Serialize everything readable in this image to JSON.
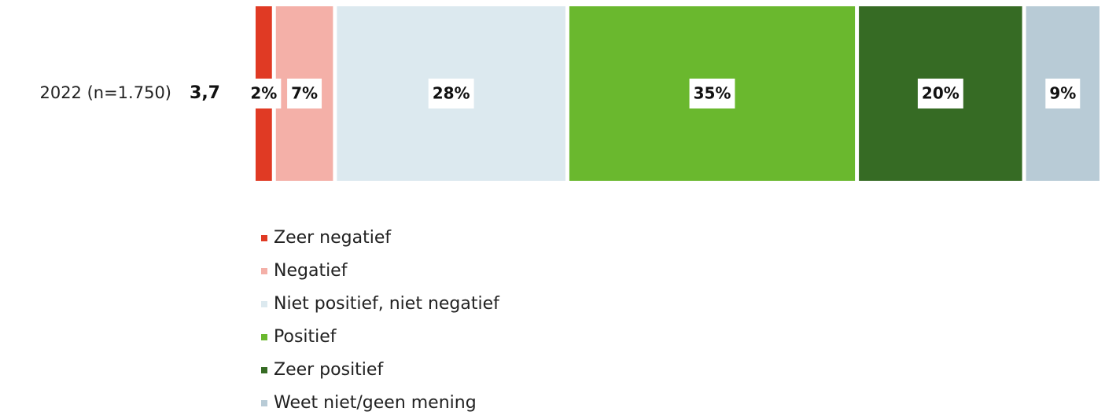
{
  "chart_data": {
    "type": "stacked_bar_horizontal",
    "categories": [
      "2022 (n=1.750)"
    ],
    "score_labels": [
      "3,7"
    ],
    "series": [
      {
        "name": "Zeer negatief",
        "color": "#e03a24",
        "values": [
          2
        ],
        "value_labels": [
          "2%"
        ]
      },
      {
        "name": "Negatief",
        "color": "#f4b0a8",
        "values": [
          7
        ],
        "value_labels": [
          "7%"
        ]
      },
      {
        "name": "Niet positief, niet negatief",
        "color": "#dce9ef",
        "values": [
          28
        ],
        "value_labels": [
          "28%"
        ]
      },
      {
        "name": "Positief",
        "color": "#6ab82e",
        "values": [
          35
        ],
        "value_labels": [
          "35%"
        ]
      },
      {
        "name": "Zeer positief",
        "color": "#366b24",
        "values": [
          20
        ],
        "value_labels": [
          "20%"
        ]
      },
      {
        "name": "Weet niet/geen mening",
        "color": "#b8cbd6",
        "values": [
          9
        ],
        "value_labels": [
          "9%"
        ]
      }
    ],
    "legend": "bottom-left"
  }
}
